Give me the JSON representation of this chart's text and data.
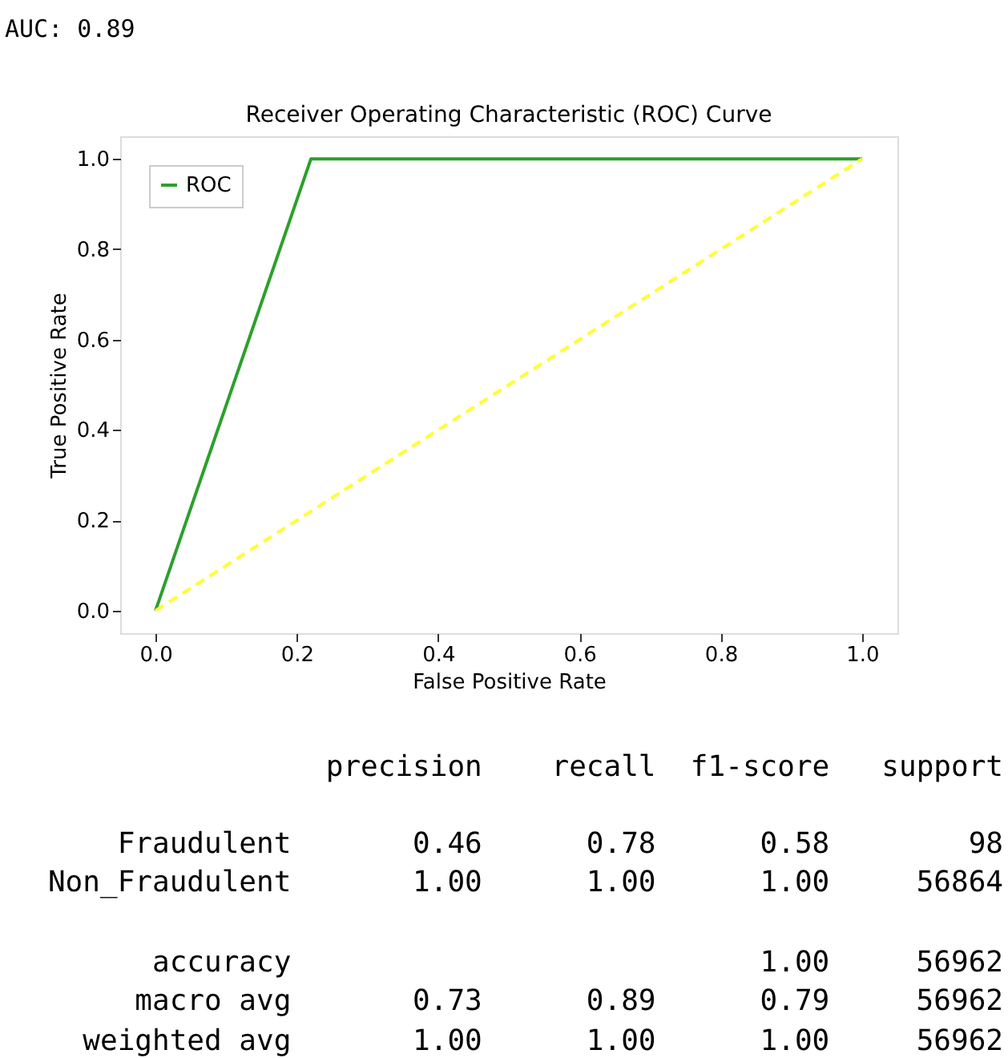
{
  "chart_data": {
    "type": "line",
    "title": "Receiver Operating Characteristic (ROC) Curve",
    "xlabel": "False Positive Rate",
    "ylabel": "True Positive Rate",
    "series": [
      {
        "name": "ROC",
        "color": "#2ca02c",
        "x": [
          0,
          0.22,
          1
        ],
        "values": [
          0,
          1,
          1
        ],
        "line_style": "solid"
      },
      {
        "color": "#ffff33",
        "x": [
          0,
          1
        ],
        "values": [
          0,
          1
        ],
        "line_style": "dashed"
      }
    ],
    "xlim": [
      -0.05,
      1.05
    ],
    "ylim": [
      -0.05,
      1.05
    ],
    "xticks": [
      {
        "value": 0,
        "label": "0.0"
      },
      {
        "value": 0.2,
        "label": "0.2"
      },
      {
        "value": 0.4,
        "label": "0.4"
      },
      {
        "value": 0.6,
        "label": "0.6"
      },
      {
        "value": 0.8,
        "label": "0.8"
      },
      {
        "value": 1,
        "label": "1.0"
      }
    ],
    "yticks": [
      {
        "value": 0,
        "label": "0.0"
      },
      {
        "value": 0.2,
        "label": "0.2"
      },
      {
        "value": 0.4,
        "label": "0.4"
      },
      {
        "value": 0.6,
        "label": "0.6"
      },
      {
        "value": 0.8,
        "label": "0.8"
      },
      {
        "value": 1,
        "label": "1.0"
      }
    ],
    "grid": false,
    "legend": "top left",
    "marker": "none",
    "annotations": [
      "AUC: 0.89",
      "              precision    recall  f1-score   support",
      "      Fraudulent       0.46      0.78      0.58        98",
      "  Non_Fraudulent       1.00      1.00      1.00     56864",
      "        accuracy                           1.00     56962",
      "       macro avg       0.73      0.89      0.79     56962",
      "    weighted avg       1.00      1.00      1.00     56962"
    ]
  }
}
